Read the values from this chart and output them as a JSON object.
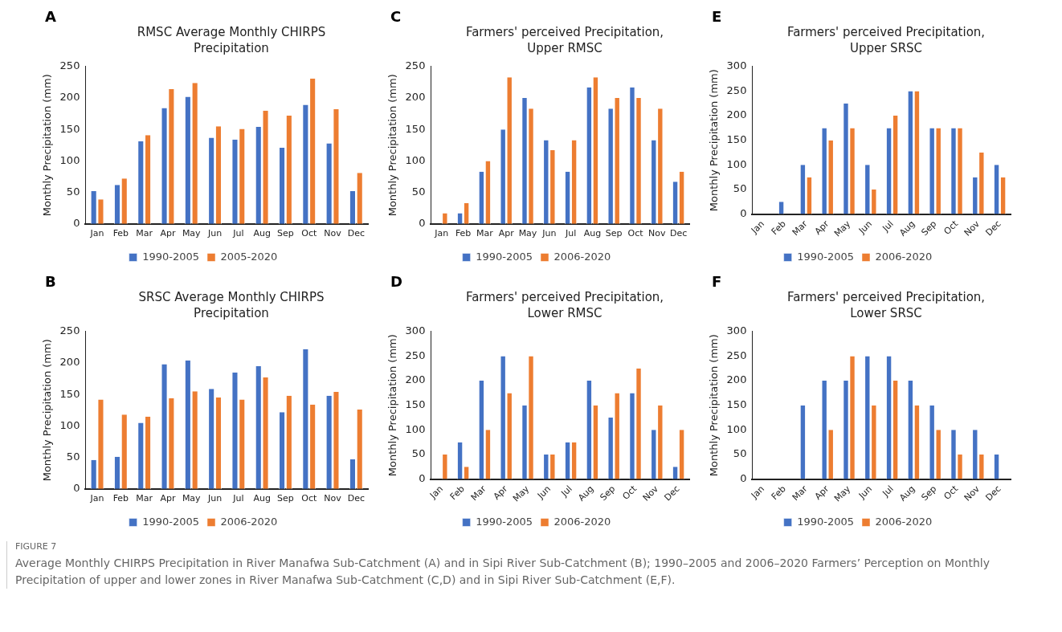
{
  "chart_data": [
    {
      "type": "bar",
      "title": "RMSC Average Monthly CHIRPS Precipitation",
      "annotations": [
        "A"
      ],
      "ylabel": "Monthly Precipitation (mm)",
      "categories": [
        "Jan",
        "Feb",
        "Mar",
        "Apr",
        "May",
        "Jun",
        "Jul",
        "Aug",
        "Sep",
        "Oct",
        "Nov",
        "Dec"
      ],
      "ylim": [
        0,
        250
      ],
      "yticks": [
        0,
        50,
        100,
        150,
        200,
        250
      ],
      "grid": false,
      "legend": "bottom",
      "series": [
        {
          "name": "1990-2005",
          "color": "#4472c4",
          "values": [
            52,
            62,
            131,
            184,
            202,
            137,
            134,
            154,
            121,
            189,
            128,
            52
          ]
        },
        {
          "name": "2005-2020",
          "color": "#ed7d31",
          "values": [
            39,
            72,
            141,
            214,
            224,
            155,
            151,
            180,
            172,
            231,
            182,
            81
          ]
        }
      ]
    },
    {
      "type": "bar",
      "title": "Farmers' perceived Precipitation, Upper RMSC",
      "annotations": [
        "C"
      ],
      "ylabel": "Monthly Precipitation (mm)",
      "categories": [
        "Jan",
        "Feb",
        "Mar",
        "Apr",
        "May",
        "Jun",
        "Jul",
        "Aug",
        "Sep",
        "Oct",
        "Nov",
        "Dec"
      ],
      "ylim": [
        0,
        250
      ],
      "yticks": [
        0,
        50,
        100,
        150,
        200,
        250
      ],
      "grid": false,
      "legend": "bottom",
      "series": [
        {
          "name": "1990-2005",
          "color": "#4472c4",
          "values": [
            0,
            17,
            83,
            150,
            200,
            133,
            83,
            217,
            183,
            217,
            133,
            67
          ]
        },
        {
          "name": "2006-2020",
          "color": "#ed7d31",
          "values": [
            17,
            33,
            100,
            233,
            183,
            117,
            133,
            233,
            200,
            200,
            183,
            83
          ]
        }
      ]
    },
    {
      "type": "bar",
      "title": "Farmers' perceived Precipitation, Upper SRSC",
      "annotations": [
        "E"
      ],
      "ylabel": "Monthly Precipitation (mm)",
      "categories": [
        "Jan",
        "Feb",
        "Mar",
        "Apr",
        "May",
        "Jun",
        "Jul",
        "Aug",
        "Sep",
        "Oct",
        "Nov",
        "Dec"
      ],
      "ylim": [
        0,
        300
      ],
      "yticks": [
        0,
        50,
        100,
        150,
        200,
        250,
        300
      ],
      "grid": false,
      "legend": "bottom",
      "series": [
        {
          "name": "1990-2005",
          "color": "#4472c4",
          "values": [
            0,
            25,
            100,
            175,
            225,
            100,
            175,
            250,
            175,
            175,
            75,
            100
          ]
        },
        {
          "name": "2006-2020",
          "color": "#ed7d31",
          "values": [
            0,
            0,
            75,
            150,
            175,
            50,
            200,
            250,
            175,
            175,
            125,
            75
          ]
        }
      ]
    },
    {
      "type": "bar",
      "title": "SRSC Average Monthly CHIRPS Precipitation",
      "annotations": [
        "B"
      ],
      "ylabel": "Monthly Precipitation (mm)",
      "categories": [
        "Jan",
        "Feb",
        "Mar",
        "Apr",
        "May",
        "Jun",
        "Jul",
        "Aug",
        "Sep",
        "Oct",
        "Nov",
        "Dec"
      ],
      "ylim": [
        0,
        250
      ],
      "yticks": [
        0,
        50,
        100,
        150,
        200,
        250
      ],
      "grid": false,
      "legend": "bottom",
      "series": [
        {
          "name": "1990-2005",
          "color": "#4472c4",
          "values": [
            46,
            51,
            105,
            198,
            204,
            159,
            185,
            195,
            122,
            222,
            148,
            47
          ]
        },
        {
          "name": "2006-2020",
          "color": "#ed7d31",
          "values": [
            142,
            118,
            115,
            144,
            155,
            145,
            142,
            177,
            148,
            134,
            154,
            126
          ]
        }
      ]
    },
    {
      "type": "bar",
      "title": "Farmers' perceived Precipitation, Lower RMSC",
      "annotations": [
        "D"
      ],
      "ylabel": "Monthly Precipitation (mm)",
      "categories": [
        "Jan",
        "Feb",
        "Mar",
        "Apr",
        "May",
        "Jun",
        "Jul",
        "Aug",
        "Sep",
        "Oct",
        "Nov",
        "Dec"
      ],
      "ylim": [
        0,
        300
      ],
      "yticks": [
        0,
        50,
        100,
        150,
        200,
        250,
        300
      ],
      "grid": false,
      "legend": "bottom",
      "series": [
        {
          "name": "1990-2005",
          "color": "#4472c4",
          "values": [
            0,
            75,
            200,
            250,
            150,
            50,
            75,
            200,
            125,
            175,
            100,
            25
          ]
        },
        {
          "name": "2006-2020",
          "color": "#ed7d31",
          "values": [
            50,
            25,
            100,
            175,
            250,
            50,
            75,
            150,
            175,
            225,
            150,
            100
          ]
        }
      ]
    },
    {
      "type": "bar",
      "title": "Farmers' perceived Precipitation, Lower SRSC",
      "annotations": [
        "F"
      ],
      "ylabel": "Monthly Precipitation (mm)",
      "categories": [
        "Jan",
        "Feb",
        "Mar",
        "Apr",
        "May",
        "Jun",
        "Jul",
        "Aug",
        "Sep",
        "Oct",
        "Nov",
        "Dec"
      ],
      "ylim": [
        0,
        300
      ],
      "yticks": [
        0,
        50,
        100,
        150,
        200,
        250,
        300
      ],
      "grid": false,
      "legend": "bottom",
      "series": [
        {
          "name": "1990-2005",
          "color": "#4472c4",
          "values": [
            0,
            0,
            150,
            200,
            200,
            250,
            250,
            200,
            150,
            100,
            100,
            50
          ]
        },
        {
          "name": "2006-2020",
          "color": "#ed7d31",
          "values": [
            0,
            0,
            0,
            100,
            250,
            150,
            200,
            150,
            100,
            50,
            50,
            0
          ]
        }
      ]
    },
    {
      "type": "other",
      "title": "FIGURE 7",
      "annotations": [
        "Average Monthly CHIRPS Precipitation in River Manafwa Sub-Catchment (A) and in Sipi River Sub-Catchment (B); 1990–2005 and 2006–2020 Farmers’ Perception on Monthly Precipitation of upper and lower zones in River Manafwa Sub-Catchment (C,D) and in Sipi River Sub-Catchment (E,F)."
      ]
    }
  ]
}
